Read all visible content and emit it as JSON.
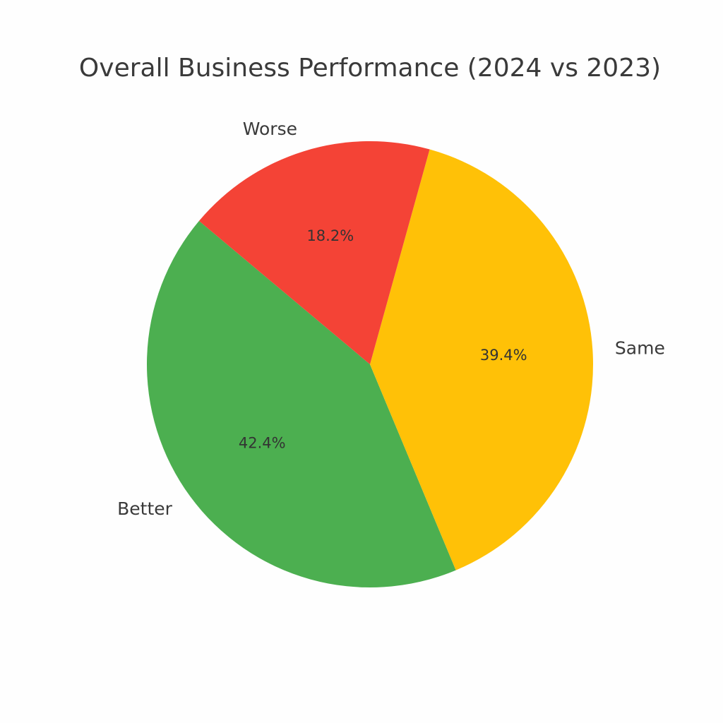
{
  "chart_data": {
    "type": "pie",
    "title": "Overall Business Performance (2024 vs 2023)",
    "categories": [
      "Better",
      "Same",
      "Worse"
    ],
    "values": [
      42.4,
      39.4,
      18.2
    ],
    "value_labels": [
      "42.4%",
      "39.4%",
      "18.2%"
    ],
    "colors": [
      "#4caf50",
      "#ffc107",
      "#f44336"
    ],
    "label_placement": "outside",
    "value_label_placement": "inside"
  }
}
